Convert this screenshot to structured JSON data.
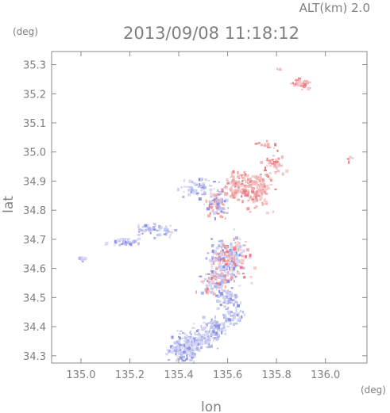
{
  "header": {
    "altitude_label": "ALT(km) 2.0",
    "timestamp": "2013/09/08 11:18:12"
  },
  "chart_data": {
    "type": "scatter",
    "title": "2013/09/08 11:18:12",
    "xlabel": "lon",
    "ylabel": "lat",
    "x_unit": "(deg)",
    "y_unit": "(deg)",
    "xlim": [
      134.88,
      136.17
    ],
    "ylim": [
      34.275,
      35.345
    ],
    "x_ticks": [
      "135.0",
      "135.2",
      "135.4",
      "135.6",
      "135.8",
      "136.0"
    ],
    "y_ticks": [
      "34.3",
      "34.4",
      "34.5",
      "34.6",
      "34.7",
      "34.8",
      "34.9",
      "35.0",
      "35.1",
      "35.2",
      "35.3"
    ],
    "grid": false,
    "colors": {
      "positive": "#f2a6a6",
      "negative": "#b4b8ee",
      "axis": "#8a8a8a"
    },
    "clusters": [
      {
        "lon": 135.0,
        "lat": 34.635,
        "rx": 0.02,
        "ry": 0.01,
        "count": 12,
        "sign": -1
      },
      {
        "lon": 135.17,
        "lat": 34.695,
        "rx": 0.06,
        "ry": 0.01,
        "count": 40,
        "sign": -1
      },
      {
        "lon": 135.3,
        "lat": 34.735,
        "rx": 0.07,
        "ry": 0.02,
        "count": 55,
        "sign": -1
      },
      {
        "lon": 135.48,
        "lat": 34.88,
        "rx": 0.07,
        "ry": 0.03,
        "count": 60,
        "sign": -1
      },
      {
        "lon": 135.55,
        "lat": 34.82,
        "rx": 0.04,
        "ry": 0.04,
        "count": 80,
        "sign": 0
      },
      {
        "lon": 135.63,
        "lat": 34.89,
        "rx": 0.05,
        "ry": 0.04,
        "count": 120,
        "sign": 1
      },
      {
        "lon": 135.72,
        "lat": 34.88,
        "rx": 0.05,
        "ry": 0.06,
        "count": 120,
        "sign": 1
      },
      {
        "lon": 135.79,
        "lat": 34.96,
        "rx": 0.04,
        "ry": 0.03,
        "count": 40,
        "sign": 1
      },
      {
        "lon": 135.75,
        "lat": 35.03,
        "rx": 0.03,
        "ry": 0.01,
        "count": 15,
        "sign": 1
      },
      {
        "lon": 135.89,
        "lat": 35.24,
        "rx": 0.03,
        "ry": 0.02,
        "count": 45,
        "sign": 1
      },
      {
        "lon": 135.81,
        "lat": 35.29,
        "rx": 0.01,
        "ry": 0.005,
        "count": 6,
        "sign": 1
      },
      {
        "lon": 136.1,
        "lat": 34.975,
        "rx": 0.01,
        "ry": 0.01,
        "count": 6,
        "sign": 1
      },
      {
        "lon": 135.6,
        "lat": 34.64,
        "rx": 0.07,
        "ry": 0.06,
        "count": 240,
        "sign": 0
      },
      {
        "lon": 135.55,
        "lat": 34.56,
        "rx": 0.06,
        "ry": 0.04,
        "count": 110,
        "sign": 0
      },
      {
        "lon": 135.6,
        "lat": 34.5,
        "rx": 0.05,
        "ry": 0.03,
        "count": 60,
        "sign": -1
      },
      {
        "lon": 135.46,
        "lat": 34.36,
        "rx": 0.07,
        "ry": 0.03,
        "count": 120,
        "sign": -1
      },
      {
        "lon": 135.42,
        "lat": 34.32,
        "rx": 0.06,
        "ry": 0.03,
        "count": 110,
        "sign": -1
      },
      {
        "lon": 135.55,
        "lat": 34.4,
        "rx": 0.06,
        "ry": 0.03,
        "count": 90,
        "sign": -1
      },
      {
        "lon": 135.62,
        "lat": 34.44,
        "rx": 0.04,
        "ry": 0.02,
        "count": 40,
        "sign": -1
      }
    ]
  }
}
